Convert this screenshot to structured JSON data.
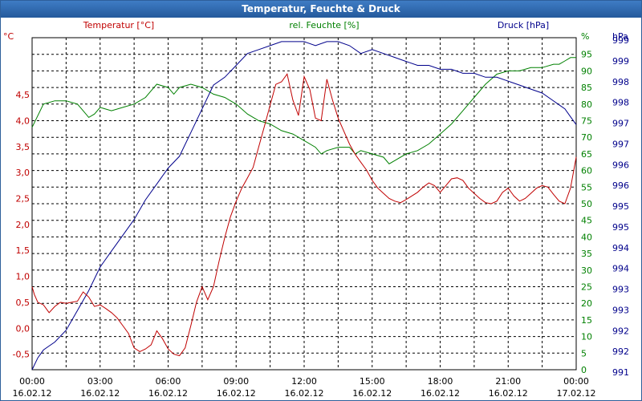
{
  "window": {
    "title": "Temperatur, Feuchte & Druck"
  },
  "chart_data": {
    "type": "line",
    "title": "Temperatur, Feuchte & Druck",
    "x_axis": {
      "range": [
        "16.02.12 00:00",
        "17.02.12 00:00"
      ],
      "ticks": [
        {
          "time": "00:00",
          "date": "16.02.12"
        },
        {
          "time": "03:00",
          "date": "16.02.12"
        },
        {
          "time": "06:00",
          "date": "16.02.12"
        },
        {
          "time": "09:00",
          "date": "16.02.12"
        },
        {
          "time": "12:00",
          "date": "16.02.12"
        },
        {
          "time": "15:00",
          "date": "16.02.12"
        },
        {
          "time": "18:00",
          "date": "16.02.12"
        },
        {
          "time": "21:00",
          "date": "16.02.12"
        },
        {
          "time": "00:00",
          "date": "17.02.12"
        }
      ]
    },
    "grid": true,
    "series": [
      {
        "name": "Temperatur [°C]",
        "axis": "left",
        "color": "#c00000",
        "ylim": [
          -0.8,
          5.6
        ],
        "unit": "°C",
        "x": [
          0,
          0.1,
          0.25,
          0.5,
          0.75,
          1.0,
          1.25,
          1.5,
          1.75,
          2.0,
          2.25,
          2.5,
          2.75,
          3.0,
          3.25,
          3.5,
          3.75,
          4.0,
          4.25,
          4.5,
          4.75,
          5.0,
          5.25,
          5.5,
          5.75,
          6.0,
          6.25,
          6.5,
          6.75,
          7.0,
          7.25,
          7.5,
          7.75,
          8.0,
          8.25,
          8.5,
          8.75,
          9.0,
          9.25,
          9.5,
          9.75,
          10.0,
          10.25,
          10.5,
          10.75,
          11.0,
          11.25,
          11.5,
          11.75,
          12.0,
          12.25,
          12.5,
          12.75,
          13.0,
          13.25,
          13.5,
          13.75,
          14.0,
          14.25,
          14.5,
          14.75,
          15.0,
          15.25,
          15.5,
          15.75,
          16.0,
          16.25,
          16.5,
          16.75,
          17.0,
          17.25,
          17.5,
          17.75,
          18.0,
          18.25,
          18.5,
          18.75,
          19.0,
          19.25,
          19.5,
          19.75,
          20.0,
          20.25,
          20.5,
          20.75,
          21.0,
          21.25,
          21.5,
          21.75,
          22.0,
          22.25,
          22.5,
          22.75,
          23.0,
          23.25,
          23.5,
          23.75,
          24.0
        ],
        "values": [
          0.8,
          0.65,
          0.5,
          0.45,
          0.3,
          0.42,
          0.5,
          0.48,
          0.5,
          0.52,
          0.7,
          0.6,
          0.42,
          0.45,
          0.38,
          0.3,
          0.2,
          0.05,
          -0.1,
          -0.38,
          -0.45,
          -0.4,
          -0.32,
          -0.05,
          -0.2,
          -0.4,
          -0.5,
          -0.53,
          -0.38,
          0.05,
          0.5,
          0.8,
          0.55,
          0.8,
          1.3,
          1.75,
          2.15,
          2.45,
          2.7,
          2.9,
          3.1,
          3.5,
          3.9,
          4.3,
          4.7,
          4.75,
          4.9,
          4.4,
          4.1,
          4.85,
          4.6,
          4.05,
          4.0,
          4.8,
          4.4,
          4.05,
          3.8,
          3.55,
          3.35,
          3.2,
          3.05,
          2.85,
          2.7,
          2.6,
          2.5,
          2.45,
          2.42,
          2.48,
          2.55,
          2.62,
          2.72,
          2.8,
          2.75,
          2.62,
          2.75,
          2.88,
          2.9,
          2.85,
          2.7,
          2.6,
          2.5,
          2.42,
          2.4,
          2.45,
          2.62,
          2.7,
          2.55,
          2.45,
          2.5,
          2.6,
          2.7,
          2.75,
          2.72,
          2.58,
          2.45,
          2.4,
          2.7,
          3.3
        ]
      },
      {
        "name": "rel. Feuchte [%]",
        "axis": "right-1",
        "color": "#008000",
        "ylim": [
          0,
          100
        ],
        "unit": "%",
        "x": [
          0,
          0.5,
          1.0,
          1.5,
          2.0,
          2.25,
          2.5,
          2.75,
          3.0,
          3.5,
          4.0,
          4.5,
          5.0,
          5.25,
          5.5,
          6.0,
          6.25,
          6.5,
          7.0,
          7.5,
          8.0,
          8.5,
          8.75,
          9.0,
          9.5,
          10.0,
          10.5,
          11.0,
          11.5,
          12.0,
          12.5,
          12.75,
          13.0,
          13.5,
          14.0,
          14.25,
          14.5,
          15.0,
          15.5,
          15.75,
          16.0,
          16.5,
          17.0,
          17.5,
          18.0,
          18.5,
          19.0,
          19.5,
          20.0,
          20.5,
          21.0,
          21.5,
          22.0,
          22.5,
          23.0,
          23.25,
          23.5,
          23.75,
          24.0
        ],
        "values": [
          73,
          80,
          81,
          81,
          80,
          78,
          76,
          77,
          79,
          78,
          79,
          80,
          82,
          84,
          86,
          85,
          83,
          85,
          86,
          85,
          83,
          82,
          81,
          80,
          77,
          75,
          74,
          72,
          71,
          69,
          67,
          65,
          66,
          67,
          67,
          65,
          66,
          65,
          64,
          62,
          63,
          65,
          66,
          68,
          71,
          74,
          78,
          82,
          86,
          89,
          90,
          90,
          91,
          91,
          92,
          92,
          93,
          94,
          94
        ]
      },
      {
        "name": "Druck [hPa]",
        "axis": "right-2",
        "color": "#00008b",
        "ylim": [
          991,
          999.4
        ],
        "unit": "hPa",
        "x": [
          0,
          0.25,
          0.5,
          0.75,
          1.0,
          1.5,
          2.0,
          2.5,
          3.0,
          3.5,
          4.0,
          4.5,
          5.0,
          5.5,
          6.0,
          6.5,
          7.0,
          7.5,
          8.0,
          8.5,
          9.0,
          9.5,
          10.0,
          10.5,
          11.0,
          11.5,
          12.0,
          12.5,
          13.0,
          13.5,
          14.0,
          14.5,
          15.0,
          15.5,
          16.0,
          16.5,
          17.0,
          17.5,
          18.0,
          18.5,
          19.0,
          19.5,
          20.0,
          20.5,
          21.0,
          21.5,
          22.0,
          22.5,
          23.0,
          23.25,
          23.5,
          23.75,
          24.0
        ],
        "values": [
          991.0,
          991.3,
          991.5,
          991.6,
          991.7,
          992.0,
          992.5,
          993.0,
          993.6,
          994.0,
          994.4,
          994.8,
          995.3,
          995.7,
          996.1,
          996.4,
          997.0,
          997.6,
          998.2,
          998.4,
          998.7,
          999.0,
          999.1,
          999.2,
          999.3,
          999.3,
          999.3,
          999.2,
          999.3,
          999.3,
          999.2,
          999.0,
          999.1,
          999.0,
          998.9,
          998.8,
          998.7,
          998.7,
          998.6,
          998.6,
          998.5,
          998.5,
          998.4,
          998.4,
          998.3,
          998.2,
          998.1,
          998.0,
          997.8,
          997.7,
          997.6,
          997.4,
          997.2
        ]
      }
    ],
    "axes": {
      "left": {
        "label": "Temperatur [°C]",
        "unit": "°C",
        "ticks": [
          -0.5,
          0.0,
          0.5,
          1.0,
          1.5,
          2.0,
          2.5,
          3.0,
          3.5,
          4.0,
          4.5
        ],
        "tick_labels": [
          "-0,5",
          "0,0",
          "0,5",
          "1,0",
          "1,5",
          "2,0",
          "2,5",
          "3,0",
          "3,5",
          "4,0",
          "4,5"
        ]
      },
      "right1": {
        "label": "rel. Feuchte [%]",
        "unit": "%",
        "ticks": [
          0,
          5,
          10,
          15,
          20,
          25,
          30,
          35,
          40,
          45,
          50,
          55,
          60,
          65,
          70,
          75,
          80,
          85,
          90,
          95
        ]
      },
      "right2": {
        "label": "Druck [hPa]",
        "unit": "hPa",
        "tick_labels": [
          "991",
          "992",
          "992",
          "993",
          "993",
          "994",
          "994",
          "995",
          "995",
          "996",
          "996",
          "997",
          "997",
          "998",
          "998",
          "999",
          "999"
        ]
      }
    }
  }
}
